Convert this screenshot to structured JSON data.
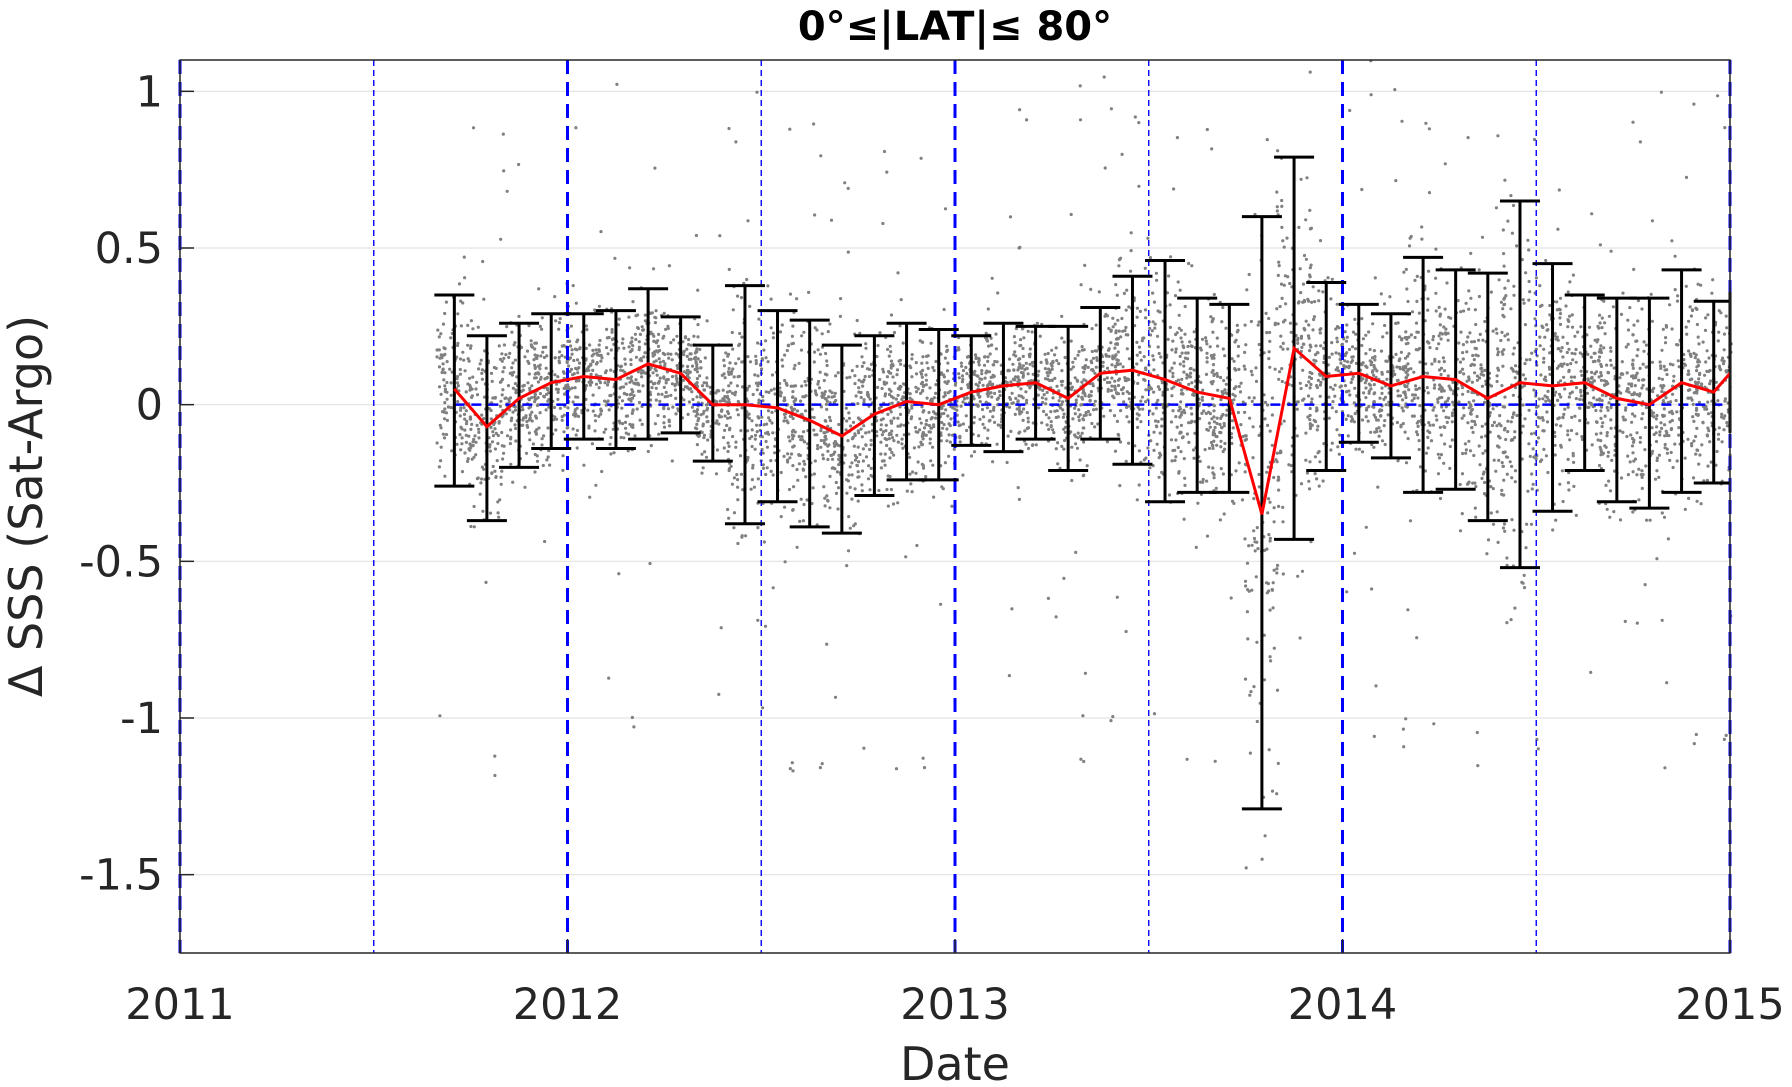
{
  "chart_data": {
    "type": "scatter",
    "title": "0°≤|LAT|≤ 80°",
    "xlabel": "Date",
    "ylabel": "Δ SSS (Sat-Argo)",
    "xlim": [
      2011,
      2015
    ],
    "ylim": [
      -1.75,
      1.1
    ],
    "xticks": [
      "2011",
      "2012",
      "2013",
      "2014",
      "2015"
    ],
    "yticks": [
      {
        "v": 1,
        "label": "1"
      },
      {
        "v": 0.5,
        "label": "0.5"
      },
      {
        "v": 0,
        "label": "0"
      },
      {
        "v": -0.5,
        "label": "-0.5"
      },
      {
        "v": -1,
        "label": "-1"
      },
      {
        "v": -1.5,
        "label": "-1.5"
      }
    ],
    "grid": true,
    "colors": {
      "scatter": "#808080",
      "mean": "#ff0000",
      "errorbar": "#000000",
      "reference": "#0000ff"
    },
    "vertical_lines": {
      "thick": [
        2011,
        2012,
        2013,
        2014,
        2015
      ],
      "thin": [
        2011.5,
        2012.5,
        2013.5,
        2014.5
      ]
    },
    "zero_line": 0,
    "monthly": {
      "x": [
        2011.708,
        2011.792,
        2011.875,
        2011.958,
        2012.042,
        2012.125,
        2012.208,
        2012.292,
        2012.375,
        2012.458,
        2012.542,
        2012.625,
        2012.708,
        2012.792,
        2012.875,
        2012.958,
        2013.042,
        2013.125,
        2013.208,
        2013.292,
        2013.375,
        2013.458,
        2013.542,
        2013.625,
        2013.708,
        2013.792,
        2013.875,
        2013.958,
        2014.042,
        2014.125,
        2014.208,
        2014.292,
        2014.375,
        2014.458,
        2014.542,
        2014.625,
        2014.708,
        2014.792,
        2014.875,
        2014.958,
        2015.0
      ],
      "mean": [
        0.05,
        -0.07,
        0.02,
        0.07,
        0.09,
        0.08,
        0.13,
        0.1,
        0.0,
        0.0,
        -0.01,
        -0.05,
        -0.1,
        -0.03,
        0.01,
        0.0,
        0.04,
        0.06,
        0.07,
        0.02,
        0.1,
        0.11,
        0.08,
        0.04,
        0.02,
        -0.35,
        0.18,
        0.09,
        0.1,
        0.06,
        0.09,
        0.08,
        0.02,
        0.07,
        0.06,
        0.07,
        0.02,
        0.0,
        0.07,
        0.04,
        0.1
      ],
      "upper": [
        0.35,
        0.22,
        0.26,
        0.29,
        0.29,
        0.3,
        0.37,
        0.28,
        0.19,
        0.38,
        0.3,
        0.27,
        0.19,
        0.22,
        0.26,
        0.24,
        0.22,
        0.26,
        0.25,
        0.25,
        0.31,
        0.41,
        0.46,
        0.34,
        0.32,
        0.6,
        0.79,
        0.39,
        0.32,
        0.29,
        0.47,
        0.43,
        0.42,
        0.65,
        0.45,
        0.35,
        0.34,
        0.34,
        0.43,
        0.33,
        0.36
      ],
      "lower": [
        -0.26,
        -0.37,
        -0.2,
        -0.14,
        -0.11,
        -0.14,
        -0.11,
        -0.09,
        -0.18,
        -0.38,
        -0.31,
        -0.39,
        -0.41,
        -0.29,
        -0.24,
        -0.24,
        -0.13,
        -0.15,
        -0.11,
        -0.21,
        -0.11,
        -0.19,
        -0.31,
        -0.28,
        -0.28,
        -1.29,
        -0.43,
        -0.21,
        -0.12,
        -0.17,
        -0.28,
        -0.27,
        -0.37,
        -0.52,
        -0.34,
        -0.21,
        -0.31,
        -0.33,
        -0.28,
        -0.25,
        -0.09
      ]
    }
  }
}
